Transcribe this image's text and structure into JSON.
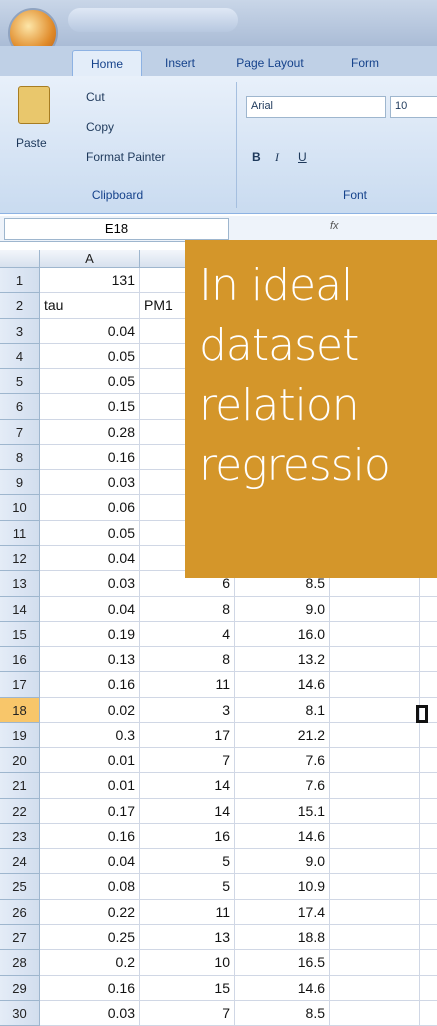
{
  "ribbon": {
    "tabs": [
      "Home",
      "Insert",
      "Page Layout",
      "Form"
    ],
    "clipboard": {
      "paste": "Paste",
      "cut": "Cut",
      "copy": "Copy",
      "format_painter": "Format Painter",
      "label": "Clipboard"
    },
    "font": {
      "name": "Arial",
      "size": "10",
      "bold": "B",
      "italic": "I",
      "underline": "U",
      "label": "Font"
    }
  },
  "formula_bar": {
    "name_box": "E18",
    "fx": "fx"
  },
  "sheet": {
    "column_headers": [
      "A"
    ],
    "selected_row": 18,
    "rows": [
      {
        "num": 1,
        "cells": [
          "131"
        ]
      },
      {
        "num": 2,
        "cells": [
          "tau",
          "PM1"
        ]
      },
      {
        "num": 3,
        "cells": [
          "0.04"
        ]
      },
      {
        "num": 4,
        "cells": [
          "0.05"
        ]
      },
      {
        "num": 5,
        "cells": [
          "0.05"
        ]
      },
      {
        "num": 6,
        "cells": [
          "0.15"
        ]
      },
      {
        "num": 7,
        "cells": [
          "0.28"
        ]
      },
      {
        "num": 8,
        "cells": [
          "0.16"
        ]
      },
      {
        "num": 9,
        "cells": [
          "0.03"
        ]
      },
      {
        "num": 10,
        "cells": [
          "0.06"
        ]
      },
      {
        "num": 11,
        "cells": [
          "0.05"
        ]
      },
      {
        "num": 12,
        "cells": [
          "0.04"
        ]
      },
      {
        "num": 13,
        "cells": [
          "0.03",
          "6",
          "8.5"
        ]
      },
      {
        "num": 14,
        "cells": [
          "0.04",
          "8",
          "9.0"
        ]
      },
      {
        "num": 15,
        "cells": [
          "0.19",
          "4",
          "16.0"
        ]
      },
      {
        "num": 16,
        "cells": [
          "0.13",
          "8",
          "13.2"
        ]
      },
      {
        "num": 17,
        "cells": [
          "0.16",
          "11",
          "14.6"
        ]
      },
      {
        "num": 18,
        "cells": [
          "0.02",
          "3",
          "8.1"
        ]
      },
      {
        "num": 19,
        "cells": [
          "0.3",
          "17",
          "21.2"
        ]
      },
      {
        "num": 20,
        "cells": [
          "0.01",
          "7",
          "7.6"
        ]
      },
      {
        "num": 21,
        "cells": [
          "0.01",
          "14",
          "7.6"
        ]
      },
      {
        "num": 22,
        "cells": [
          "0.17",
          "14",
          "15.1"
        ]
      },
      {
        "num": 23,
        "cells": [
          "0.16",
          "16",
          "14.6"
        ]
      },
      {
        "num": 24,
        "cells": [
          "0.04",
          "5",
          "9.0"
        ]
      },
      {
        "num": 25,
        "cells": [
          "0.08",
          "5",
          "10.9"
        ]
      },
      {
        "num": 26,
        "cells": [
          "0.22",
          "11",
          "17.4"
        ]
      },
      {
        "num": 27,
        "cells": [
          "0.25",
          "13",
          "18.8"
        ]
      },
      {
        "num": 28,
        "cells": [
          "0.2",
          "10",
          "16.5"
        ]
      },
      {
        "num": 29,
        "cells": [
          "0.16",
          "15",
          "14.6"
        ]
      },
      {
        "num": 30,
        "cells": [
          "0.03",
          "7",
          "8.5"
        ]
      }
    ]
  },
  "overlay": {
    "lines": [
      "In ideal",
      "dataset",
      "relation",
      "regressio"
    ]
  }
}
